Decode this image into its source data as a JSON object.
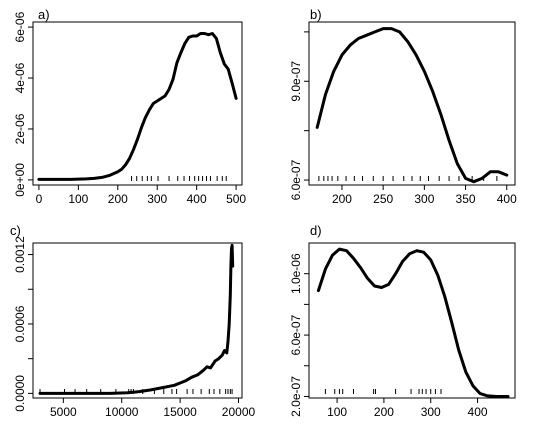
{
  "chart_data": [
    {
      "panel": "a)",
      "type": "line",
      "xlim": [
        -15,
        515
      ],
      "ylim": [
        -2e-07,
        6.2e-06
      ],
      "x_ticks": [
        0,
        100,
        200,
        300,
        400,
        500
      ],
      "x_tick_labels": [
        "0",
        "100",
        "200",
        "300",
        "400",
        "500"
      ],
      "y_ticks": [
        0,
        2e-06,
        4e-06,
        6e-06
      ],
      "y_tick_labels": [
        "0e+00",
        "2e-06",
        "4e-06",
        "6e-06"
      ],
      "x": [
        0,
        20,
        40,
        60,
        80,
        100,
        120,
        140,
        160,
        180,
        200,
        210,
        220,
        230,
        240,
        250,
        260,
        270,
        280,
        290,
        300,
        310,
        320,
        330,
        340,
        350,
        360,
        370,
        380,
        390,
        400,
        410,
        420,
        430,
        440,
        450,
        460,
        470,
        480,
        490,
        500
      ],
      "y": [
        2e-08,
        2e-08,
        2e-08,
        2e-08,
        2e-08,
        3e-08,
        4e-08,
        6e-08,
        1e-07,
        1.8e-07,
        3.2e-07,
        4.2e-07,
        6e-07,
        8.5e-07,
        1.2e-06,
        1.6e-06,
        2.05e-06,
        2.45e-06,
        2.75e-06,
        3e-06,
        3.1e-06,
        3.2e-06,
        3.3e-06,
        3.55e-06,
        3.95e-06,
        4.6e-06,
        5e-06,
        5.35e-06,
        5.6e-06,
        5.65e-06,
        5.65e-06,
        5.75e-06,
        5.75e-06,
        5.7e-06,
        5.75e-06,
        5.55e-06,
        5e-06,
        4.55e-06,
        4.35e-06,
        3.8e-06,
        3.2e-06
      ],
      "rug": [
        235,
        248,
        262,
        275,
        285,
        302,
        330,
        352,
        368,
        382,
        395,
        405,
        415,
        425,
        435,
        452,
        465,
        475
      ]
    },
    {
      "panel": "b)",
      "type": "line",
      "xlim": [
        160,
        410
      ],
      "ylim": [
        5.85e-07,
        1.08e-06
      ],
      "x_ticks": [
        200,
        250,
        300,
        350,
        400
      ],
      "x_tick_labels": [
        "200",
        "250",
        "300",
        "350",
        "400"
      ],
      "y_ticks": [
        6e-07,
        9e-07
      ],
      "y_tick_labels": [
        "6.0e-07",
        "9.0e-07"
      ],
      "minor_y_ticks": [
        7.5e-07,
        1.05e-06
      ],
      "x": [
        170,
        180,
        190,
        200,
        210,
        220,
        230,
        240,
        250,
        260,
        270,
        280,
        290,
        300,
        310,
        320,
        330,
        340,
        350,
        360,
        370,
        380,
        390,
        400
      ],
      "y": [
        7.6e-07,
        8.6e-07,
        9.3e-07,
        9.8e-07,
        1.01e-06,
        1.03e-06,
        1.04e-06,
        1.05e-06,
        1.06e-06,
        1.06e-06,
        1.05e-06,
        1.02e-06,
        9.8e-07,
        9.3e-07,
        8.7e-07,
        8e-07,
        7.2e-07,
        6.5e-07,
        6.05e-07,
        5.95e-07,
        6.05e-07,
        6.25e-07,
        6.25e-07,
        6.15e-07
      ],
      "rug": [
        172,
        178,
        183,
        188,
        195,
        205,
        215,
        225,
        238,
        250,
        262,
        275,
        285,
        295,
        305,
        318,
        330,
        342,
        358,
        372,
        388
      ]
    },
    {
      "panel": "c)",
      "type": "line",
      "xlim": [
        2400,
        20300
      ],
      "ylim": [
        -4e-05,
        0.0013
      ],
      "x_ticks": [
        5000,
        10000,
        15000,
        20000
      ],
      "x_tick_labels": [
        "5000",
        "10000",
        "15000",
        "20000"
      ],
      "y_ticks": [
        0,
        0.0006,
        0.0012
      ],
      "y_tick_labels": [
        "0.0000",
        "0.0006",
        "0.0012"
      ],
      "minor_y_ticks": [
        0.0003,
        0.0009
      ],
      "x": [
        3000,
        5000,
        7000,
        9000,
        10500,
        11500,
        12500,
        13500,
        14500,
        15000,
        15500,
        16000,
        16500,
        17000,
        17300,
        17600,
        18000,
        18300,
        18600,
        18800,
        19000,
        19100,
        19200,
        19300,
        19350,
        19400,
        19450,
        19500
      ],
      "y": [
        0,
        0,
        0,
        0,
        5e-06,
        1.5e-05,
        3e-05,
        5e-05,
        7e-05,
        9e-05,
        0.00011,
        0.00014,
        0.00016,
        0.0002,
        0.00023,
        0.00022,
        0.00028,
        0.0003,
        0.00033,
        0.00037,
        0.00035,
        0.00045,
        0.0006,
        0.00085,
        0.0011,
        0.00125,
        0.00128,
        0.0011
      ],
      "rug": [
        3000,
        5100,
        6000,
        7000,
        8200,
        9500,
        10600,
        10800,
        11000,
        11800,
        12800,
        13600,
        14300,
        14700,
        15600,
        16100,
        16800,
        17500,
        17900,
        18400,
        18900,
        19100,
        19300,
        19450
      ]
    },
    {
      "panel": "d)",
      "type": "line",
      "xlim": [
        40,
        480
      ],
      "ylim": [
        1.9e-07,
        1.2e-06
      ],
      "x_ticks": [
        100,
        200,
        300,
        400
      ],
      "x_tick_labels": [
        "100",
        "200",
        "300",
        "400"
      ],
      "y_ticks": [
        2e-07,
        6e-07,
        1e-06
      ],
      "y_tick_labels": [
        "2.0e-07",
        "6.0e-07",
        "1.0e-06"
      ],
      "minor_y_ticks": [
        4e-07,
        8e-07
      ],
      "x": [
        60,
        75,
        90,
        105,
        120,
        135,
        150,
        165,
        180,
        195,
        210,
        225,
        240,
        255,
        270,
        285,
        300,
        315,
        330,
        345,
        360,
        375,
        390,
        405,
        420,
        440,
        465
      ],
      "y": [
        8.9e-07,
        1.03e-06,
        1.12e-06,
        1.16e-06,
        1.15e-06,
        1.1e-06,
        1.04e-06,
        9.7e-07,
        9.2e-07,
        9.1e-07,
        9.3e-07,
        1e-06,
        1.08e-06,
        1.13e-06,
        1.15e-06,
        1.14e-06,
        1.09e-06,
        9.9e-07,
        8.5e-07,
        6.8e-07,
        5e-07,
        3.6e-07,
        2.7e-07,
        2.2e-07,
        2.05e-07,
        2e-07,
        2e-07
      ],
      "rug": [
        75,
        95,
        105,
        112,
        135,
        178,
        182,
        225,
        258,
        275,
        282,
        290,
        300,
        310,
        322
      ]
    }
  ]
}
